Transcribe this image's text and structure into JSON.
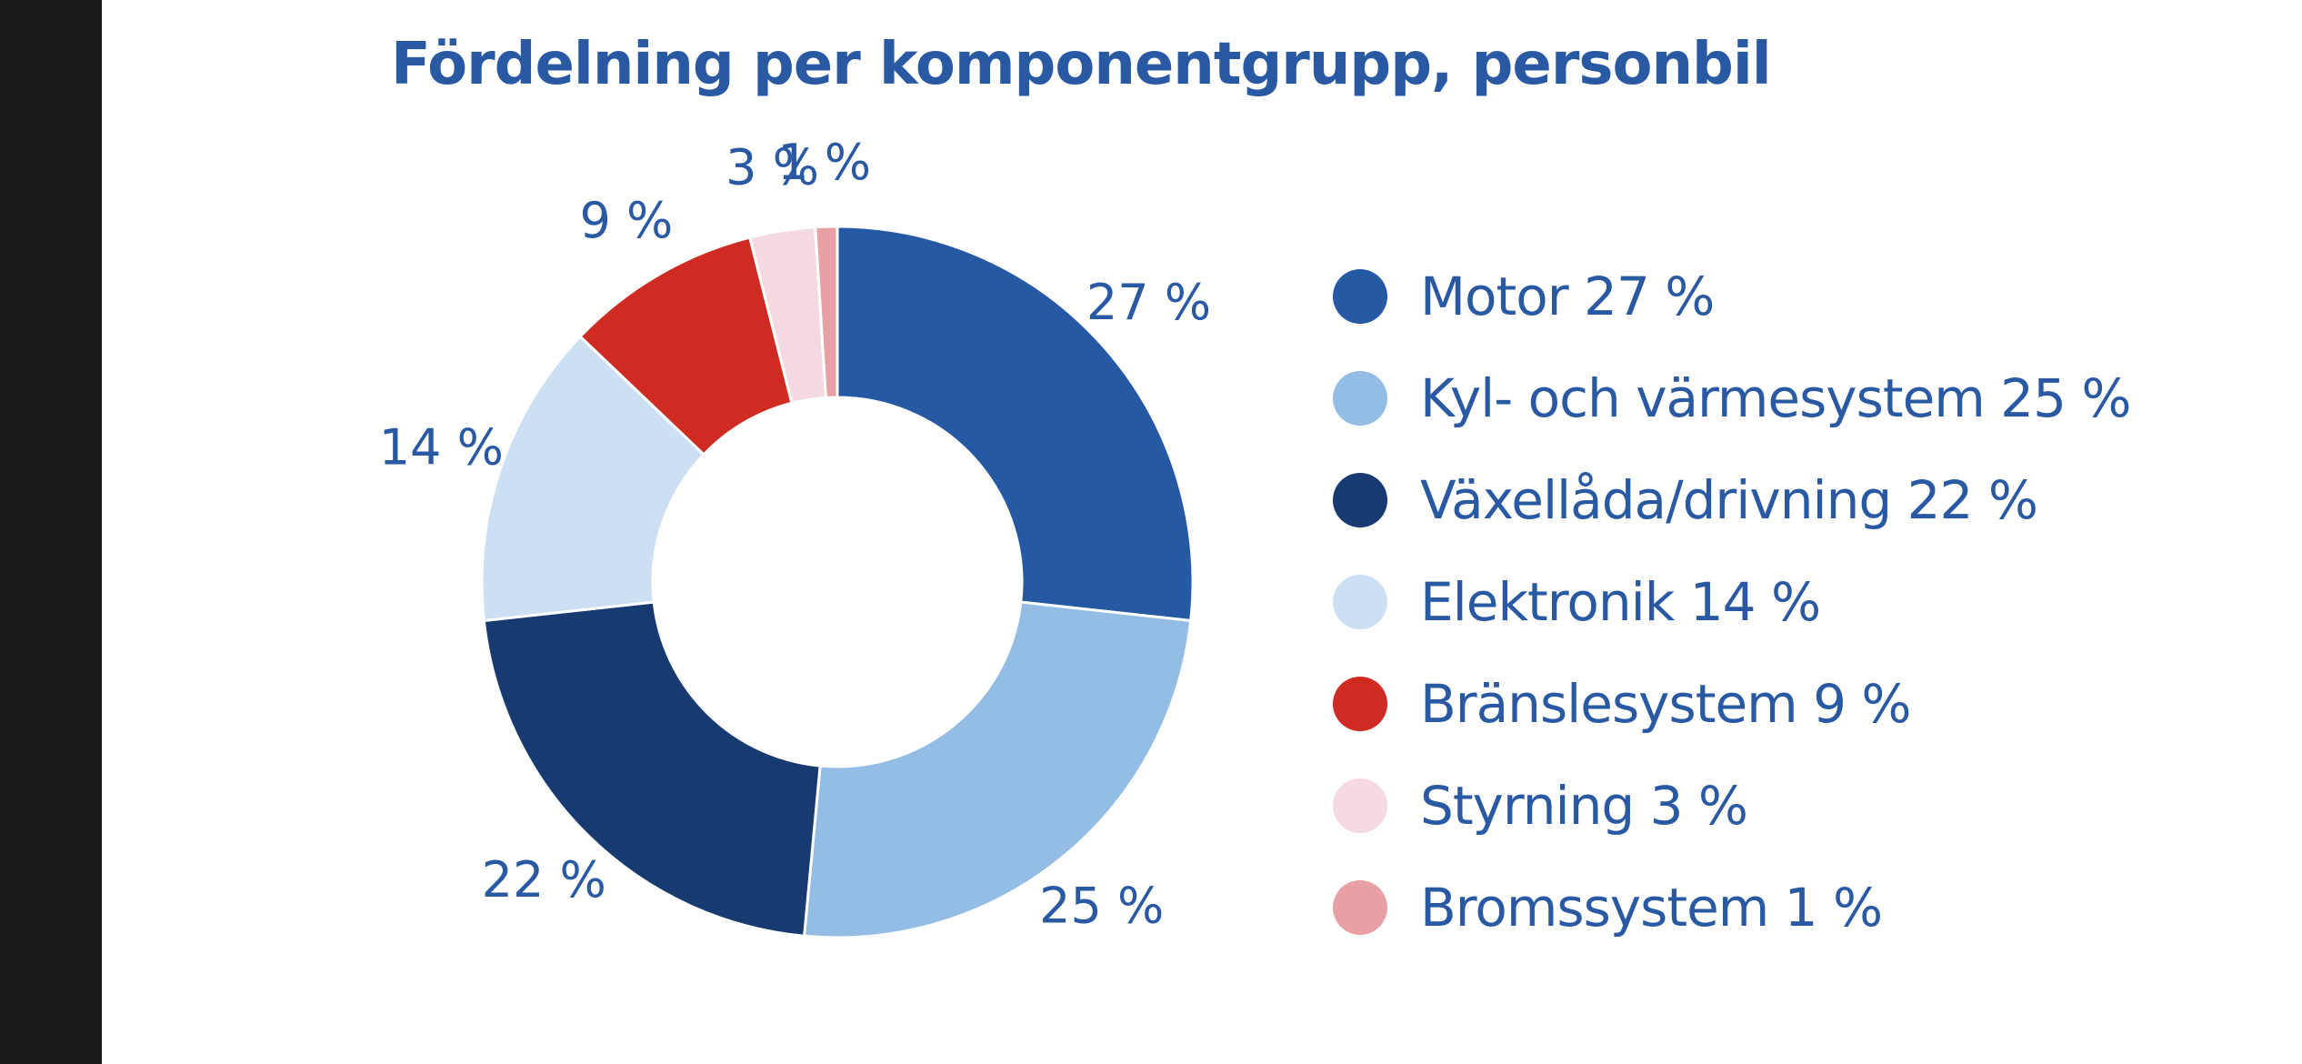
{
  "chart_data": {
    "type": "pie",
    "title": "Fördelning per komponentgrupp, personbil",
    "slices": [
      {
        "name": "Motor",
        "value": 27,
        "label": "27 %",
        "legend": "Motor 27 %",
        "color": "#2659a4"
      },
      {
        "name": "Kyl- och värmesystem",
        "value": 25,
        "label": "25 %",
        "legend": "Kyl- och värmesystem 25 %",
        "color": "#93bde5"
      },
      {
        "name": "Växellåda/drivning",
        "value": 22,
        "label": "22 %",
        "legend": "Växellåda/drivning 22 %",
        "color": "#173a70"
      },
      {
        "name": "Elektronik",
        "value": 14,
        "label": "14 %",
        "legend": "Elektronik 14 %",
        "color": "#cde0f3"
      },
      {
        "name": "Bränslesystem",
        "value": 9,
        "label": "9 %",
        "legend": "Bränslesystem 9 %",
        "color": "#d02b23"
      },
      {
        "name": "Styrning",
        "value": 3,
        "label": "3 %",
        "legend": "Styrning 3 %",
        "color": "#f4d9e0"
      },
      {
        "name": "Bromssystem",
        "value": 1,
        "label": "1 %",
        "legend": "Bromssystem 1 %",
        "color": "#e7a0a4"
      }
    ],
    "legend_position": "right",
    "donut": true
  }
}
